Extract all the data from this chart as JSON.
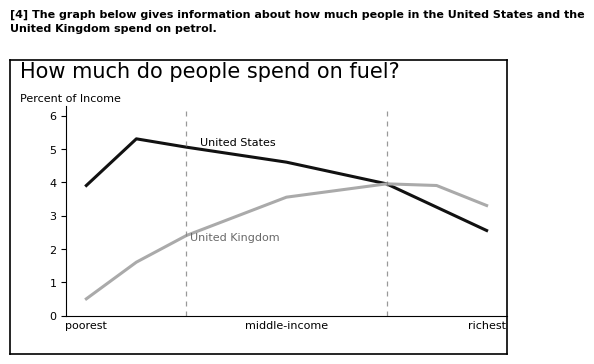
{
  "title": "How much do people spend on fuel?",
  "ylabel": "Percent of Income",
  "header_line1": "[4] The graph below gives information about how much people in the United States and the",
  "header_line2": "United Kingdom spend on petrol.",
  "x_labels": [
    "poorest",
    "middle-income",
    "richest"
  ],
  "dashed_line_x": [
    0.5,
    1.5
  ],
  "us_label": "United States",
  "uk_label": "United Kingdom",
  "us_x": [
    0,
    0.25,
    0.5,
    1.0,
    1.5,
    2.0
  ],
  "us_y": [
    3.9,
    5.3,
    5.05,
    4.6,
    3.95,
    2.55
  ],
  "uk_x": [
    0,
    0.25,
    0.5,
    1.0,
    1.5,
    1.75,
    2.0
  ],
  "uk_y": [
    0.5,
    1.6,
    2.4,
    3.55,
    3.95,
    3.9,
    3.3
  ],
  "us_color": "#111111",
  "uk_color": "#aaaaaa",
  "ylim": [
    0,
    6.3
  ],
  "yticks": [
    0,
    1,
    2,
    3,
    4,
    5,
    6
  ],
  "xlim": [
    -0.1,
    2.1
  ],
  "background_color": "#ffffff",
  "title_fontsize": 15,
  "header_fontsize": 8,
  "ylabel_fontsize": 8,
  "tick_fontsize": 8,
  "annotation_fontsize": 8,
  "line_width": 2.2
}
